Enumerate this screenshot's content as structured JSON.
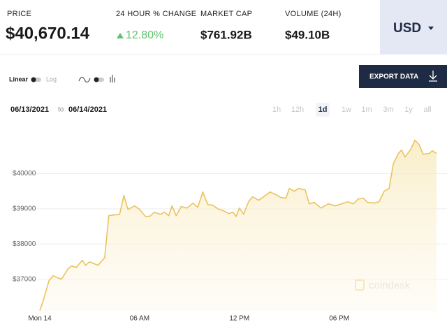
{
  "header": {
    "price_label": "PRICE",
    "price": "$40,670.14",
    "change_label": "24 HOUR % CHANGE",
    "change": "12.80%",
    "market_cap_label": "MARKET CAP",
    "market_cap": "$761.92B",
    "volume_label": "VOLUME (24H)",
    "volume": "$49.10B",
    "currency": "USD"
  },
  "toolbar": {
    "scale_options": [
      "Linear",
      "Log"
    ],
    "export": "EXPORT DATA",
    "date_from": "06/13/2021",
    "date_sep": "to",
    "date_to": "06/14/2021",
    "ranges": [
      "1h",
      "12h",
      "1d",
      "1w",
      "1m",
      "3m",
      "1y",
      "all"
    ],
    "selected_range": "1d"
  },
  "chart_data": {
    "type": "line",
    "color": "#e8c45e",
    "watermark": "coindesk",
    "x": [
      0,
      0.25,
      0.55,
      0.8,
      1.3,
      1.7,
      1.9,
      2.2,
      2.55,
      2.75,
      3.0,
      3.5,
      3.9,
      4.15,
      4.45,
      4.8,
      5.05,
      5.3,
      5.7,
      6.0,
      6.35,
      6.6,
      6.9,
      7.25,
      7.5,
      7.75,
      7.95,
      8.2,
      8.5,
      8.85,
      9.2,
      9.5,
      9.8,
      10.1,
      10.4,
      10.7,
      11.05,
      11.35,
      11.6,
      11.8,
      12.0,
      12.25,
      12.55,
      12.8,
      13.15,
      13.45,
      13.85,
      14.2,
      14.5,
      14.8,
      15.0,
      15.3,
      15.55,
      15.95,
      16.2,
      16.5,
      16.9,
      17.35,
      17.75,
      18.15,
      18.5,
      18.85,
      19.15,
      19.45,
      19.7,
      20.1,
      20.4,
      20.7,
      21.0,
      21.25,
      21.55,
      21.75,
      21.95,
      22.3,
      22.55,
      22.8,
      23.05,
      23.4,
      23.6,
      23.85
    ],
    "values": [
      36107,
      36464,
      36960,
      37099,
      37000,
      37298,
      37377,
      37337,
      37536,
      37397,
      37496,
      37397,
      37615,
      38806,
      38825,
      38845,
      39381,
      38984,
      39083,
      38984,
      38786,
      38786,
      38905,
      38845,
      38905,
      38806,
      39083,
      38806,
      39063,
      39024,
      39163,
      39044,
      39480,
      39123,
      39103,
      39004,
      38944,
      38865,
      38905,
      38786,
      39024,
      38845,
      39202,
      39341,
      39242,
      39341,
      39480,
      39401,
      39321,
      39302,
      39579,
      39500,
      39579,
      39540,
      39143,
      39183,
      39024,
      39143,
      39083,
      39143,
      39202,
      39143,
      39282,
      39302,
      39183,
      39163,
      39202,
      39500,
      39579,
      40274,
      40571,
      40671,
      40472,
      40690,
      40948,
      40829,
      40552,
      40571,
      40651,
      40571
    ],
    "xlim": [
      0,
      23.85
    ],
    "ylim": [
      36100,
      41300
    ],
    "xticks": [
      {
        "value": 0,
        "label": "Mon 14"
      },
      {
        "value": 6,
        "label": "06 AM"
      },
      {
        "value": 12,
        "label": "12 PM"
      },
      {
        "value": 18,
        "label": "06 PM"
      }
    ],
    "yticks": [
      {
        "value": 37000,
        "label": "$37000"
      },
      {
        "value": 38000,
        "label": "$38000"
      },
      {
        "value": 39000,
        "label": "$39000"
      },
      {
        "value": 40000,
        "label": "$40000"
      }
    ],
    "grid": true
  }
}
